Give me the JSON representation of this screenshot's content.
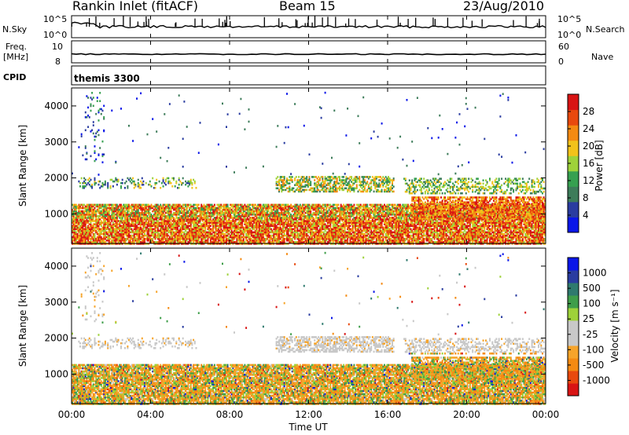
{
  "header": {
    "station": "Rankin Inlet (fitACF)",
    "beam": "Beam 15",
    "date": "23/Aug/2010"
  },
  "top_panels": {
    "nsky_label": "N.Sky",
    "nsearch_label": "N.Search",
    "freq_label_1": "Freq.",
    "freq_label_2": "[MHz]",
    "nave_label": "Nave",
    "cpid_label": "CPID",
    "cpid_value": "themis 3300",
    "noise_ticks_left": [
      "10^5",
      "10^0"
    ],
    "noise_ticks_right": [
      "10^5",
      "10^0"
    ],
    "freq_ticks_left": [
      "10",
      "8"
    ],
    "nave_ticks_right": [
      "60",
      "0"
    ]
  },
  "colors": {
    "power_scale": [
      "#0a16e8",
      "#2a3ca0",
      "#3d7c5a",
      "#36a050",
      "#9ed23a",
      "#f2c21a",
      "#f48a12",
      "#e8490e",
      "#d81414"
    ],
    "velocity_scale": [
      "#d81414",
      "#e8490e",
      "#f48a12",
      "#f6a42a",
      "#c8c8c8",
      "#c8c8c8",
      "#9ed23a",
      "#3f9e4a",
      "#2f7a6e",
      "#2a3ca0",
      "#0a16e8"
    ]
  },
  "chart_data": [
    {
      "type": "heatmap",
      "name": "power-panel",
      "ylabel": "Slant Range [km]",
      "y_ticks": [
        "1000",
        "2000",
        "3000",
        "4000"
      ],
      "ylim": [
        180,
        4500
      ],
      "colorbar": {
        "label": "Power [dB]",
        "ticks": [
          "4",
          "8",
          "12",
          "16",
          "20",
          "24",
          "28"
        ],
        "range": [
          0,
          32
        ]
      }
    },
    {
      "type": "heatmap",
      "name": "velocity-panel",
      "ylabel": "Slant Range [km]",
      "y_ticks": [
        "1000",
        "2000",
        "3000",
        "4000"
      ],
      "ylim": [
        180,
        4500
      ],
      "colorbar": {
        "label": "Velocity [m s⁻¹]",
        "ticks": [
          "-1000",
          "-500",
          "-100",
          "-25",
          "25",
          "100",
          "500",
          "1000"
        ],
        "range": [
          -1500,
          1500
        ]
      }
    }
  ],
  "x_axis": {
    "label": "Time UT",
    "ticks": [
      "00:00",
      "04:00",
      "08:00",
      "12:00",
      "16:00",
      "20:00",
      "00:00"
    ]
  }
}
